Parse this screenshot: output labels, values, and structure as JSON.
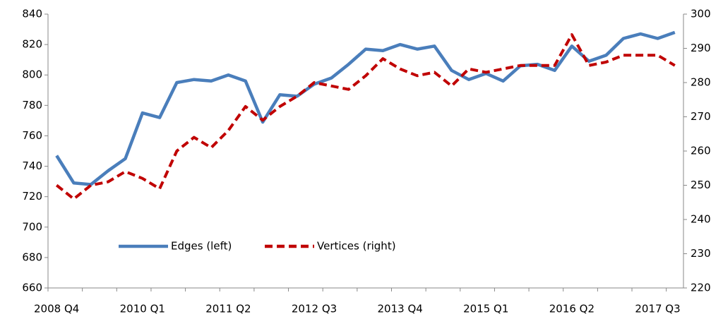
{
  "chart_data": {
    "type": "line",
    "categories": [
      "2008 Q4",
      null,
      null,
      null,
      null,
      "2010 Q1",
      null,
      null,
      null,
      null,
      "2011 Q2",
      null,
      null,
      null,
      null,
      "2012 Q3",
      null,
      null,
      null,
      null,
      "2013 Q4",
      null,
      null,
      null,
      null,
      "2015 Q1",
      null,
      null,
      null,
      null,
      "2016 Q2",
      null,
      null,
      null,
      null,
      "2017 Q3",
      null
    ],
    "series": [
      {
        "name": "Edges (left)",
        "color": "#4a7ebb",
        "dash": false,
        "axis": "y",
        "values": [
          747,
          729,
          728,
          737,
          745,
          775,
          772,
          795,
          797,
          796,
          800,
          796,
          769,
          787,
          786,
          794,
          798,
          807,
          817,
          816,
          820,
          817,
          819,
          803,
          797,
          801,
          796,
          806,
          807,
          803,
          819,
          809,
          813,
          824,
          827,
          824,
          828
        ]
      },
      {
        "name": "Vertices (right)",
        "color": "#c00000",
        "dash": true,
        "axis": "y2",
        "values": [
          250,
          246,
          250,
          251,
          254,
          252,
          249,
          260,
          264,
          261,
          266,
          273,
          269,
          273,
          276,
          280,
          279,
          278,
          282,
          287,
          284,
          282,
          283,
          279,
          284,
          283,
          284,
          285,
          285,
          285,
          294,
          285,
          286,
          288,
          288,
          288,
          285
        ]
      }
    ],
    "ylim": [
      660,
      840
    ],
    "yticks": [
      660,
      680,
      700,
      720,
      740,
      760,
      780,
      800,
      820,
      840
    ],
    "y2lim": [
      220,
      300
    ],
    "y2ticks": [
      220,
      230,
      240,
      250,
      260,
      270,
      280,
      290,
      300
    ],
    "grid": false
  }
}
